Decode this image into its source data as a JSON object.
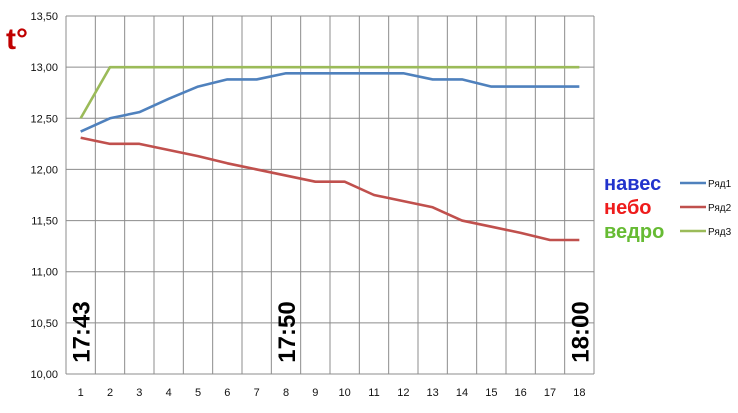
{
  "chart_data": {
    "type": "line",
    "title": "",
    "xlabel": "",
    "ylabel": "t°",
    "x": [
      1,
      2,
      3,
      4,
      5,
      6,
      7,
      8,
      9,
      10,
      11,
      12,
      13,
      14,
      15,
      16,
      17,
      18
    ],
    "ylim": [
      10,
      13.5
    ],
    "ytick_labels": [
      "10,00",
      "10,50",
      "11,00",
      "11,50",
      "12,00",
      "12,50",
      "13,00",
      "13,50"
    ],
    "grid": true,
    "legend_position": "right",
    "series": [
      {
        "name": "Ряд1",
        "label": "навес",
        "color": "#4f81bd",
        "label_color": "#2233cc",
        "values": [
          12.37,
          12.5,
          12.56,
          12.69,
          12.81,
          12.88,
          12.88,
          12.94,
          12.94,
          12.94,
          12.94,
          12.94,
          12.88,
          12.88,
          12.81,
          12.81,
          12.81,
          12.81
        ]
      },
      {
        "name": "Ряд2",
        "label": "небо",
        "color": "#c0504d",
        "label_color": "#ee1c1c",
        "values": [
          12.31,
          12.25,
          12.25,
          12.19,
          12.13,
          12.06,
          12.0,
          11.94,
          11.88,
          11.88,
          11.75,
          11.69,
          11.63,
          11.5,
          11.44,
          11.38,
          11.31,
          11.31
        ]
      },
      {
        "name": "Ряд3",
        "label": "ведро",
        "color": "#9bbb59",
        "label_color": "#66bb33",
        "values": [
          12.5,
          13.0,
          13.0,
          13.0,
          13.0,
          13.0,
          13.0,
          13.0,
          13.0,
          13.0,
          13.0,
          13.0,
          13.0,
          13.0,
          13.0,
          13.0,
          13.0,
          13.0
        ]
      }
    ],
    "annotations": [
      {
        "text": "17:43",
        "x": 1
      },
      {
        "text": "17:50",
        "x": 8
      },
      {
        "text": "18:00",
        "x": 18
      }
    ]
  }
}
